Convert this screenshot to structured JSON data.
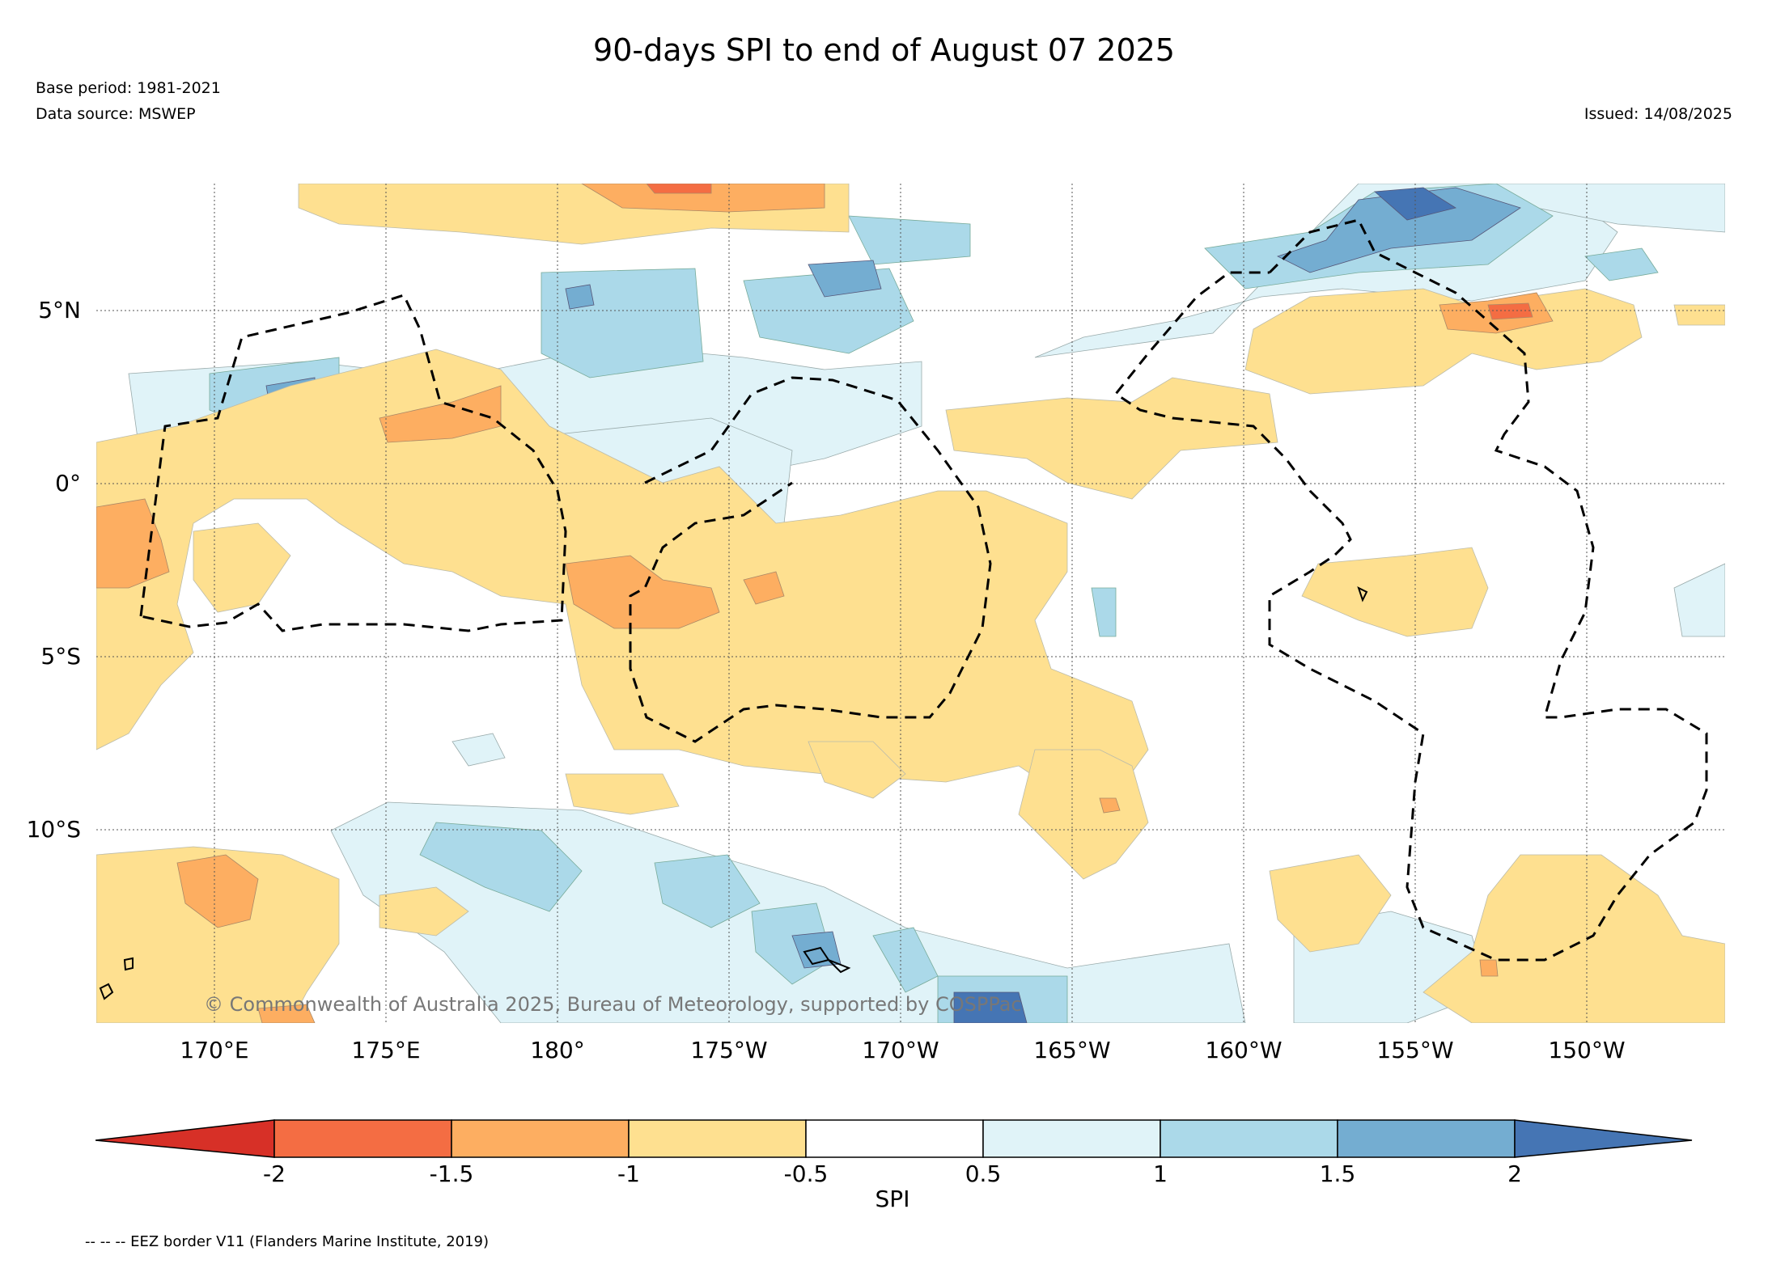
{
  "title": "90-days SPI to end of August 07 2025",
  "meta": {
    "base_period": "Base period: 1981-2021",
    "data_source": "Data source: MSWEP",
    "issued": "Issued: 14/08/2025"
  },
  "map": {
    "lat_labels": [
      "5°N",
      "0°",
      "5°S",
      "10°S"
    ],
    "lon_labels": [
      "170°E",
      "175°E",
      "180°",
      "175°W",
      "170°W",
      "165°W",
      "160°W",
      "155°W",
      "150°W"
    ],
    "copyright": "© Commonwealth of Australia 2025, Bureau of Meteorology, supported by COSPPac"
  },
  "colorbar": {
    "label": "SPI",
    "ticks": [
      "-2",
      "-1.5",
      "-1",
      "-0.5",
      "0.5",
      "1",
      "1.5",
      "2"
    ],
    "colors": {
      "below_-2": "#d73027",
      "-2_-1.5": "#f46d43",
      "-1.5_-1": "#fdae61",
      "-1_-0.5": "#fee090",
      "-0.5_0.5": "#ffffff",
      "0.5_1": "#e0f3f8",
      "1_1.5": "#abd9e9",
      "1.5_2": "#74add1",
      "above_2": "#4575b4"
    }
  },
  "legend": {
    "eez_note": "-- -- -- EEZ border V11 (Flanders Marine Institute, 2019)"
  }
}
